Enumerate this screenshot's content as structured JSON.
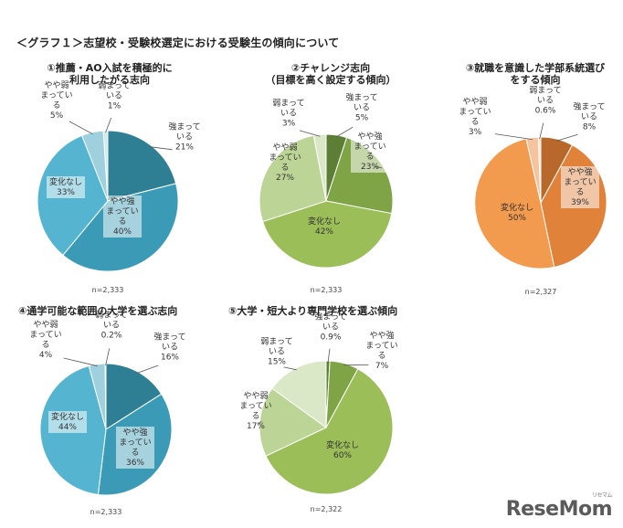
{
  "title": "＜グラフ１＞志望校・受験校選定における受験生の傾向について",
  "logo": "ReseMom",
  "logo_sub": "リセマム",
  "chart_data": [
    {
      "type": "pie",
      "title": "①推薦・AO入試を積極的に\n利用したがる志向",
      "n_label": "n=2,333",
      "slices": [
        {
          "label": "強まっている",
          "value": 21,
          "value_label": "21%",
          "color": "#2e7f93"
        },
        {
          "label": "やや強まっている",
          "value": 40,
          "value_label": "40%",
          "color": "#3b9bb6"
        },
        {
          "label": "変化なし",
          "value": 33,
          "value_label": "33%",
          "color": "#55b5d0"
        },
        {
          "label": "やや弱まっている",
          "value": 5,
          "value_label": "5%",
          "color": "#9fd0de"
        },
        {
          "label": "弱まっている",
          "value": 1,
          "value_label": "1%",
          "color": "#d3e9ef"
        }
      ]
    },
    {
      "type": "pie",
      "title": "②チャレンジ志向\n（目標を高く設定する傾向）",
      "n_label": "n=2,333",
      "slices": [
        {
          "label": "強まっている",
          "value": 5,
          "value_label": "5%",
          "color": "#5d7f35"
        },
        {
          "label": "やや強まっている",
          "value": 23,
          "value_label": "23%",
          "color": "#7ea445"
        },
        {
          "label": "変化なし",
          "value": 42,
          "value_label": "42%",
          "color": "#9bbe58"
        },
        {
          "label": "やや弱まっている",
          "value": 27,
          "value_label": "27%",
          "color": "#bcd596"
        },
        {
          "label": "弱まっている",
          "value": 3,
          "value_label": "3%",
          "color": "#dbe8c8"
        }
      ]
    },
    {
      "type": "pie",
      "title": "③就職を意識した学部系統選び\nをする傾向",
      "n_label": "n=2,327",
      "slices": [
        {
          "label": "強まっている",
          "value": 8,
          "value_label": "8%",
          "color": "#b8682a"
        },
        {
          "label": "やや強まっている",
          "value": 39,
          "value_label": "39%",
          "color": "#e0823a"
        },
        {
          "label": "変化なし",
          "value": 50,
          "value_label": "50%",
          "color": "#f29a4d"
        },
        {
          "label": "やや弱まっている",
          "value": 3,
          "value_label": "3%",
          "color": "#f5c39e"
        },
        {
          "label": "弱まっている",
          "value": 0.6,
          "value_label": "0.6%",
          "color": "#f9e0cc"
        }
      ]
    },
    {
      "type": "pie",
      "title": "④通学可能な範囲の大学を選ぶ志向",
      "n_label": "n=2,333",
      "slices": [
        {
          "label": "強まっている",
          "value": 16,
          "value_label": "16%",
          "color": "#2e7f93"
        },
        {
          "label": "やや強まっている",
          "value": 36,
          "value_label": "36%",
          "color": "#3b9bb6"
        },
        {
          "label": "変化なし",
          "value": 44,
          "value_label": "44%",
          "color": "#55b5d0"
        },
        {
          "label": "やや弱まっている",
          "value": 4,
          "value_label": "4%",
          "color": "#9fd0de"
        },
        {
          "label": "弱まっている",
          "value": 0.2,
          "value_label": "0.2%",
          "color": "#d3e9ef"
        }
      ]
    },
    {
      "type": "pie",
      "title": "⑤大学・短大より専門学校を選ぶ傾向",
      "n_label": "n=2,322",
      "slices": [
        {
          "label": "強まっている",
          "value": 0.9,
          "value_label": "0.9%",
          "color": "#5d7f35"
        },
        {
          "label": "やや強まっている",
          "value": 7,
          "value_label": "7%",
          "color": "#7ea445"
        },
        {
          "label": "変化なし",
          "value": 60,
          "value_label": "60%",
          "color": "#9bbe58"
        },
        {
          "label": "やや弱まっている",
          "value": 17,
          "value_label": "17%",
          "color": "#bcd596"
        },
        {
          "label": "弱まっている",
          "value": 15,
          "value_label": "15%",
          "color": "#dbe8c8"
        }
      ]
    }
  ]
}
